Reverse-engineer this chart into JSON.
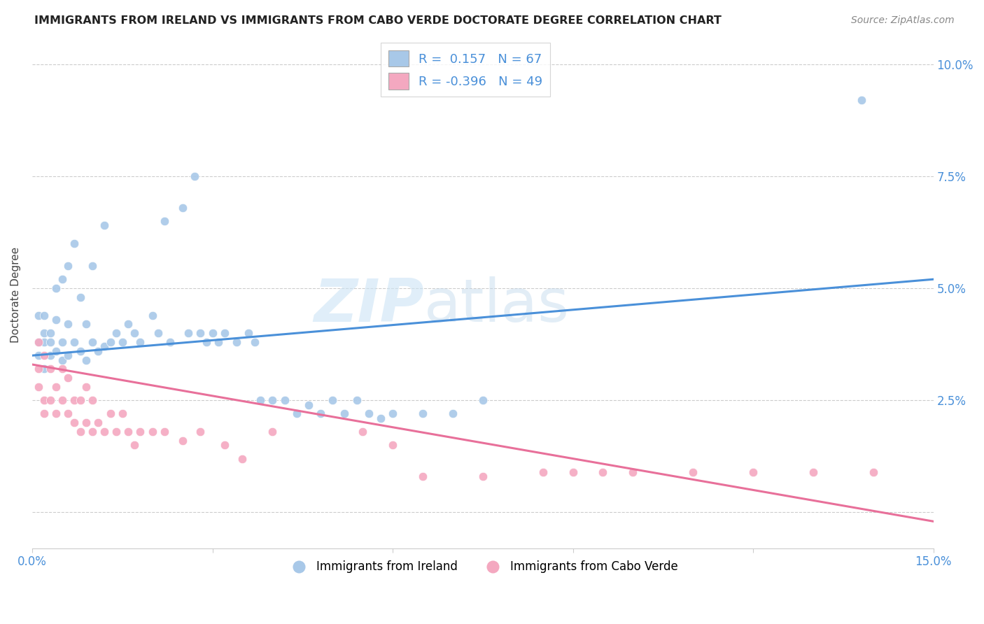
{
  "title": "IMMIGRANTS FROM IRELAND VS IMMIGRANTS FROM CABO VERDE DOCTORATE DEGREE CORRELATION CHART",
  "source": "Source: ZipAtlas.com",
  "ylabel": "Doctorate Degree",
  "xlim": [
    0.0,
    0.15
  ],
  "ylim": [
    -0.008,
    0.105
  ],
  "ireland_color": "#a8c8e8",
  "cabo_verde_color": "#f4a8c0",
  "ireland_line_color": "#4a90d9",
  "cabo_verde_line_color": "#e8709a",
  "ireland_R": 0.157,
  "ireland_N": 67,
  "cabo_verde_R": -0.396,
  "cabo_verde_N": 49,
  "ireland_line_start": 0.035,
  "ireland_line_end": 0.052,
  "cabo_line_start": 0.033,
  "cabo_line_end": -0.002,
  "ireland_x": [
    0.001,
    0.001,
    0.001,
    0.002,
    0.002,
    0.002,
    0.002,
    0.003,
    0.003,
    0.003,
    0.004,
    0.004,
    0.004,
    0.005,
    0.005,
    0.005,
    0.006,
    0.006,
    0.006,
    0.007,
    0.007,
    0.008,
    0.008,
    0.009,
    0.009,
    0.01,
    0.01,
    0.011,
    0.012,
    0.012,
    0.013,
    0.014,
    0.015,
    0.016,
    0.017,
    0.018,
    0.02,
    0.021,
    0.022,
    0.023,
    0.025,
    0.026,
    0.027,
    0.028,
    0.029,
    0.03,
    0.031,
    0.032,
    0.034,
    0.036,
    0.037,
    0.038,
    0.04,
    0.042,
    0.044,
    0.046,
    0.048,
    0.05,
    0.052,
    0.054,
    0.056,
    0.058,
    0.06,
    0.065,
    0.07,
    0.075,
    0.138
  ],
  "ireland_y": [
    0.044,
    0.038,
    0.035,
    0.044,
    0.04,
    0.038,
    0.032,
    0.04,
    0.038,
    0.035,
    0.05,
    0.043,
    0.036,
    0.052,
    0.038,
    0.034,
    0.055,
    0.042,
    0.035,
    0.06,
    0.038,
    0.048,
    0.036,
    0.042,
    0.034,
    0.055,
    0.038,
    0.036,
    0.064,
    0.037,
    0.038,
    0.04,
    0.038,
    0.042,
    0.04,
    0.038,
    0.044,
    0.04,
    0.065,
    0.038,
    0.068,
    0.04,
    0.075,
    0.04,
    0.038,
    0.04,
    0.038,
    0.04,
    0.038,
    0.04,
    0.038,
    0.025,
    0.025,
    0.025,
    0.022,
    0.024,
    0.022,
    0.025,
    0.022,
    0.025,
    0.022,
    0.021,
    0.022,
    0.022,
    0.022,
    0.025,
    0.092
  ],
  "cabo_x": [
    0.001,
    0.001,
    0.001,
    0.002,
    0.002,
    0.002,
    0.003,
    0.003,
    0.004,
    0.004,
    0.005,
    0.005,
    0.006,
    0.006,
    0.007,
    0.007,
    0.008,
    0.008,
    0.009,
    0.009,
    0.01,
    0.01,
    0.011,
    0.012,
    0.013,
    0.014,
    0.015,
    0.016,
    0.017,
    0.018,
    0.02,
    0.022,
    0.025,
    0.028,
    0.032,
    0.035,
    0.04,
    0.055,
    0.06,
    0.065,
    0.075,
    0.085,
    0.09,
    0.095,
    0.1,
    0.11,
    0.12,
    0.13,
    0.14
  ],
  "cabo_y": [
    0.038,
    0.032,
    0.028,
    0.035,
    0.025,
    0.022,
    0.032,
    0.025,
    0.028,
    0.022,
    0.032,
    0.025,
    0.03,
    0.022,
    0.025,
    0.02,
    0.025,
    0.018,
    0.028,
    0.02,
    0.025,
    0.018,
    0.02,
    0.018,
    0.022,
    0.018,
    0.022,
    0.018,
    0.015,
    0.018,
    0.018,
    0.018,
    0.016,
    0.018,
    0.015,
    0.012,
    0.018,
    0.018,
    0.015,
    0.008,
    0.008,
    0.009,
    0.009,
    0.009,
    0.009,
    0.009,
    0.009,
    0.009,
    0.009
  ]
}
